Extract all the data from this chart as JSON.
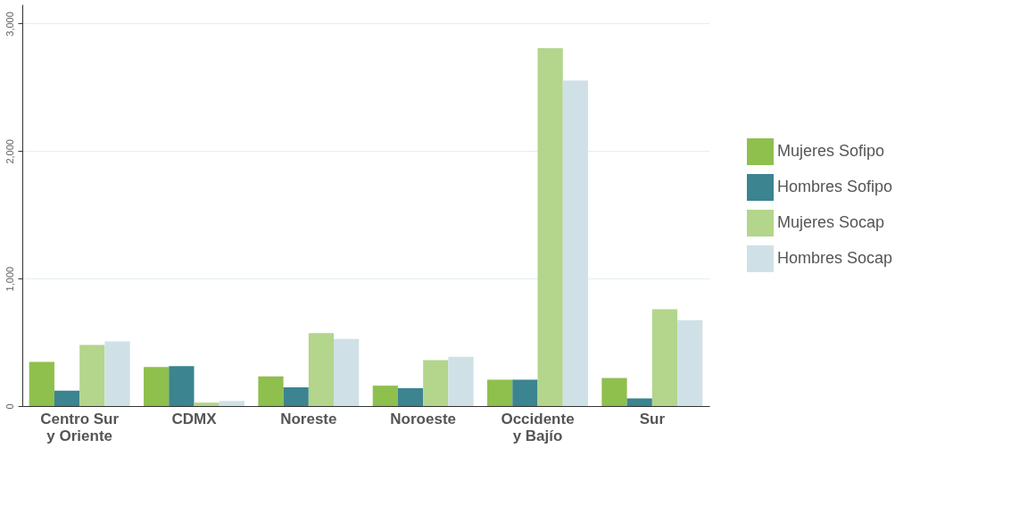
{
  "chart_data": {
    "type": "bar",
    "categories": [
      "Centro Sur\ny Oriente",
      "CDMX",
      "Noreste",
      "Noroeste",
      "Occidente\ny Bajío",
      "Sur"
    ],
    "series": [
      {
        "name": "Mujeres Sofipo",
        "color": "#8fbf4d",
        "values": [
          347,
          307,
          233,
          160,
          207,
          220
        ]
      },
      {
        "name": "Hombres Sofipo",
        "color": "#3b8490",
        "values": [
          120,
          313,
          147,
          140,
          207,
          60
        ]
      },
      {
        "name": "Mujeres Socap",
        "color": "#b3d58c",
        "values": [
          480,
          27,
          573,
          360,
          2807,
          760
        ]
      },
      {
        "name": "Hombres Socap",
        "color": "#cfe1e6",
        "values": [
          507,
          40,
          527,
          387,
          2553,
          673
        ]
      }
    ],
    "ylim": [
      0,
      3150
    ],
    "yticks": [
      0,
      {
        "value": 1000,
        "label": "1,000"
      },
      {
        "value": 2000,
        "label": "2,000"
      },
      {
        "value": 3000,
        "label": "3,000"
      }
    ],
    "grid": "y",
    "legend": "right"
  }
}
